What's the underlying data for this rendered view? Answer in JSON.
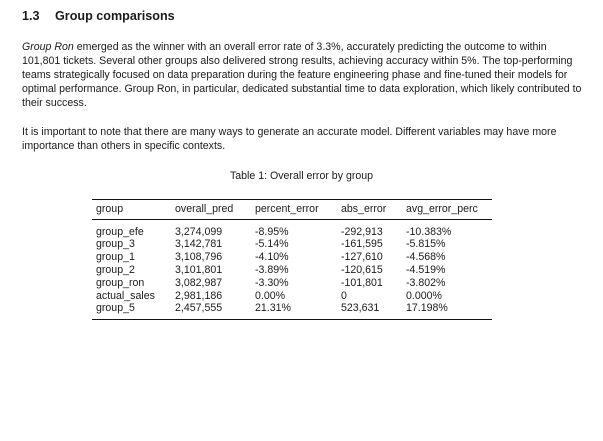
{
  "section": {
    "number": "1.3",
    "title": "Group comparisons"
  },
  "paragraph1": {
    "lead_italic": "Group Ron",
    "text": " emerged as the winner with an overall error rate of 3.3%, accurately predicting the outcome to within 101,801 tickets. Several other groups also delivered strong results, achieving accuracy within 5%. The top-performing teams strategically focused on data preparation during the feature engineering phase and fine-tuned their models for optimal performance. Group Ron, in particular, dedicated substantial time to data exploration, which likely contributed to their success."
  },
  "paragraph2": {
    "text": "It is important to note that there are many ways to generate an accurate model. Different variables may have more importance than others in specific contexts."
  },
  "table": {
    "caption": "Table 1: Overall error by group",
    "columns": [
      "group",
      "overall_pred",
      "percent_error",
      "abs_error",
      "avg_error_perc"
    ],
    "rows": [
      [
        "group_efe",
        "3,274,099",
        "-8.95%",
        "-292,913",
        "-10.383%"
      ],
      [
        "group_3",
        "3,142,781",
        "-5.14%",
        "-161,595",
        "-5.815%"
      ],
      [
        "group_1",
        "3,108,796",
        "-4.10%",
        "-127,610",
        "-4.568%"
      ],
      [
        "group_2",
        "3,101,801",
        "-3.89%",
        "-120,615",
        "-4.519%"
      ],
      [
        "group_ron",
        "3,082,987",
        "-3.30%",
        "-101,801",
        "-3.802%"
      ],
      [
        "actual_sales",
        "2,981,186",
        "0.00%",
        "0",
        "0.000%"
      ],
      [
        "group_5",
        "2,457,555",
        "21.31%",
        "523,631",
        "17.198%"
      ]
    ]
  }
}
